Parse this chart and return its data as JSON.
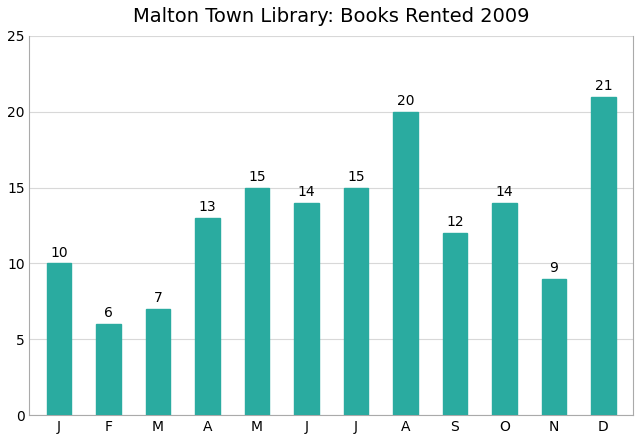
{
  "title": "Malton Town Library: Books Rented 2009",
  "months": [
    "J",
    "F",
    "M",
    "A",
    "M",
    "J",
    "J",
    "A",
    "S",
    "O",
    "N",
    "D"
  ],
  "values": [
    10,
    6,
    7,
    13,
    15,
    14,
    15,
    20,
    12,
    14,
    9,
    21
  ],
  "bar_color": "#2aaba0",
  "ylim": [
    0,
    25
  ],
  "yticks": [
    0,
    5,
    10,
    15,
    20,
    25
  ],
  "title_fontsize": 14,
  "label_fontsize": 10,
  "tick_fontsize": 10,
  "bar_width": 0.5,
  "background_color": "#ffffff",
  "grid_color": "#d8d8d8",
  "spine_color": "#aaaaaa"
}
